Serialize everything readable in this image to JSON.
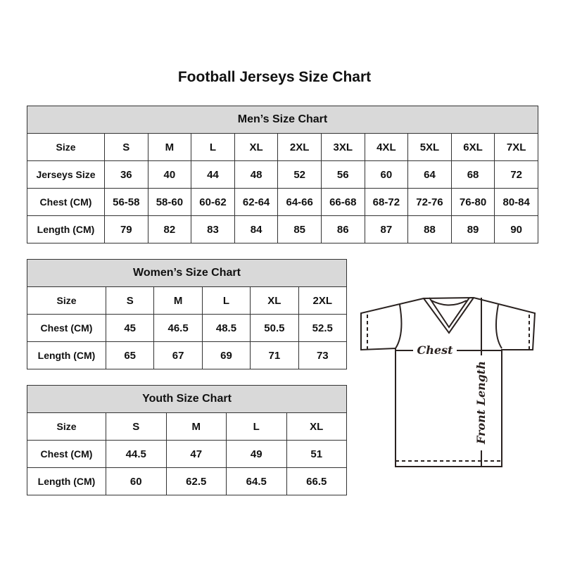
{
  "title": "Football Jerseys Size Chart",
  "men": {
    "heading": "Men’s Size Chart",
    "rows": [
      [
        "Size",
        "S",
        "M",
        "L",
        "XL",
        "2XL",
        "3XL",
        "4XL",
        "5XL",
        "6XL",
        "7XL"
      ],
      [
        "Jerseys Size",
        "36",
        "40",
        "44",
        "48",
        "52",
        "56",
        "60",
        "64",
        "68",
        "72"
      ],
      [
        "Chest (CM)",
        "56-58",
        "58-60",
        "60-62",
        "62-64",
        "64-66",
        "66-68",
        "68-72",
        "72-76",
        "76-80",
        "80-84"
      ],
      [
        "Length (CM)",
        "79",
        "82",
        "83",
        "84",
        "85",
        "86",
        "87",
        "88",
        "89",
        "90"
      ]
    ]
  },
  "women": {
    "heading": "Women’s Size Chart",
    "rows": [
      [
        "Size",
        "S",
        "M",
        "L",
        "XL",
        "2XL"
      ],
      [
        "Chest (CM)",
        "45",
        "46.5",
        "48.5",
        "50.5",
        "52.5"
      ],
      [
        "Length (CM)",
        "65",
        "67",
        "69",
        "71",
        "73"
      ]
    ]
  },
  "youth": {
    "heading": "Youth Size Chart",
    "rows": [
      [
        "Size",
        "S",
        "M",
        "L",
        "XL"
      ],
      [
        "Chest (CM)",
        "44.5",
        "47",
        "49",
        "51"
      ],
      [
        "Length (CM)",
        "60",
        "62.5",
        "64.5",
        "66.5"
      ]
    ]
  },
  "diagram": {
    "chest_label": "Chest",
    "length_label": "Front Length"
  },
  "colors": {
    "header_bg": "#d9d9d9",
    "border": "#333333"
  }
}
